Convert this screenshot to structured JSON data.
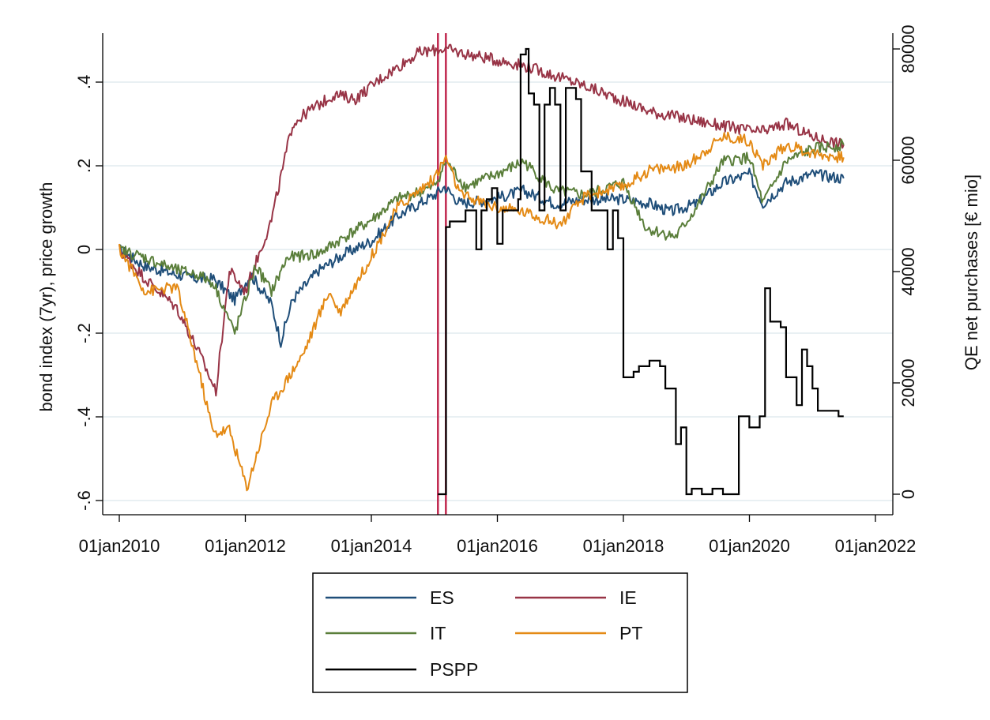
{
  "chart_data": {
    "type": "line",
    "title": "",
    "xlabel": "",
    "ylabel": "bond index (7yr), price growth",
    "y2label": "QE net purchases [€ mio]",
    "xlim": [
      "2010-01-01",
      "2022-01-01"
    ],
    "x_ticks": [
      "01jan2010",
      "01jan2012",
      "01jan2014",
      "01jan2016",
      "01jan2018",
      "01jan2020",
      "01jan2022"
    ],
    "ylim": [
      -0.6,
      0.5
    ],
    "y_ticks": [
      "-.6",
      "-.4",
      "-.2",
      "0",
      ".2",
      ".4"
    ],
    "y2lim": [
      0,
      80000
    ],
    "y2_ticks": [
      "0",
      "20000",
      "40000",
      "60000",
      "80000"
    ],
    "grid": true,
    "legend_position": "bottom",
    "vertical_markers": [
      "2015-01-22",
      "2015-03-09"
    ],
    "vertical_marker_color": "#c0284f",
    "series": [
      {
        "name": "ES",
        "color": "#1f4e79",
        "axis": "left",
        "points": [
          [
            "2010-01-01",
            0.0
          ],
          [
            "2010-06-01",
            -0.04
          ],
          [
            "2010-12-01",
            -0.06
          ],
          [
            "2011-04-01",
            -0.07
          ],
          [
            "2011-07-01",
            -0.07
          ],
          [
            "2011-11-01",
            -0.12
          ],
          [
            "2012-02-01",
            -0.06
          ],
          [
            "2012-06-01",
            -0.13
          ],
          [
            "2012-07-25",
            -0.22
          ],
          [
            "2012-10-01",
            -0.12
          ],
          [
            "2013-03-01",
            -0.05
          ],
          [
            "2013-08-01",
            -0.01
          ],
          [
            "2014-01-01",
            0.02
          ],
          [
            "2014-06-01",
            0.08
          ],
          [
            "2015-01-01",
            0.13
          ],
          [
            "2015-03-01",
            0.15
          ],
          [
            "2015-06-01",
            0.11
          ],
          [
            "2015-12-01",
            0.12
          ],
          [
            "2016-06-01",
            0.14
          ],
          [
            "2016-12-01",
            0.11
          ],
          [
            "2017-06-01",
            0.12
          ],
          [
            "2018-01-01",
            0.12
          ],
          [
            "2018-06-01",
            0.11
          ],
          [
            "2018-10-01",
            0.09
          ],
          [
            "2019-03-01",
            0.11
          ],
          [
            "2019-08-01",
            0.16
          ],
          [
            "2020-01-01",
            0.18
          ],
          [
            "2020-03-20",
            0.11
          ],
          [
            "2020-08-01",
            0.16
          ],
          [
            "2021-01-01",
            0.18
          ],
          [
            "2021-07-01",
            0.17
          ]
        ]
      },
      {
        "name": "IE",
        "color": "#983446",
        "axis": "left",
        "points": [
          [
            "2010-01-01",
            0.0
          ],
          [
            "2010-06-01",
            -0.07
          ],
          [
            "2010-12-01",
            -0.14
          ],
          [
            "2011-04-01",
            -0.24
          ],
          [
            "2011-07-15",
            -0.34
          ],
          [
            "2011-10-01",
            -0.05
          ],
          [
            "2012-01-01",
            -0.1
          ],
          [
            "2012-06-01",
            0.07
          ],
          [
            "2012-10-01",
            0.3
          ],
          [
            "2013-01-01",
            0.33
          ],
          [
            "2013-06-01",
            0.37
          ],
          [
            "2013-10-01",
            0.36
          ],
          [
            "2014-03-01",
            0.41
          ],
          [
            "2014-10-01",
            0.47
          ],
          [
            "2015-03-01",
            0.48
          ],
          [
            "2015-06-01",
            0.47
          ],
          [
            "2016-06-01",
            0.44
          ],
          [
            "2017-06-01",
            0.39
          ],
          [
            "2018-06-01",
            0.33
          ],
          [
            "2019-06-01",
            0.3
          ],
          [
            "2020-03-01",
            0.28
          ],
          [
            "2020-08-01",
            0.3
          ],
          [
            "2021-01-01",
            0.27
          ],
          [
            "2021-07-01",
            0.25
          ]
        ]
      },
      {
        "name": "IT",
        "color": "#5a7e3a",
        "axis": "left",
        "points": [
          [
            "2010-01-01",
            0.0
          ],
          [
            "2010-06-01",
            -0.02
          ],
          [
            "2010-12-01",
            -0.05
          ],
          [
            "2011-04-01",
            -0.06
          ],
          [
            "2011-07-01",
            -0.08
          ],
          [
            "2011-11-01",
            -0.2
          ],
          [
            "2012-03-01",
            -0.04
          ],
          [
            "2012-06-01",
            -0.1
          ],
          [
            "2012-09-01",
            -0.02
          ],
          [
            "2013-03-01",
            -0.01
          ],
          [
            "2013-08-01",
            0.03
          ],
          [
            "2014-01-01",
            0.07
          ],
          [
            "2014-06-01",
            0.12
          ],
          [
            "2015-01-01",
            0.15
          ],
          [
            "2015-03-10",
            0.21
          ],
          [
            "2015-07-01",
            0.15
          ],
          [
            "2016-01-01",
            0.18
          ],
          [
            "2016-06-01",
            0.21
          ],
          [
            "2016-12-01",
            0.14
          ],
          [
            "2017-06-01",
            0.13
          ],
          [
            "2018-01-01",
            0.16
          ],
          [
            "2018-05-15",
            0.05
          ],
          [
            "2018-11-01",
            0.03
          ],
          [
            "2019-03-01",
            0.1
          ],
          [
            "2019-08-01",
            0.21
          ],
          [
            "2020-01-01",
            0.22
          ],
          [
            "2020-03-20",
            0.11
          ],
          [
            "2020-08-01",
            0.21
          ],
          [
            "2021-01-01",
            0.24
          ],
          [
            "2021-07-01",
            0.25
          ]
        ]
      },
      {
        "name": "PT",
        "color": "#e48a15",
        "axis": "left",
        "points": [
          [
            "2010-01-01",
            0.0
          ],
          [
            "2010-06-01",
            -0.1
          ],
          [
            "2010-12-01",
            -0.09
          ],
          [
            "2011-04-01",
            -0.28
          ],
          [
            "2011-07-01",
            -0.44
          ],
          [
            "2011-10-01",
            -0.43
          ],
          [
            "2012-01-10",
            -0.57
          ],
          [
            "2012-06-01",
            -0.37
          ],
          [
            "2012-12-01",
            -0.25
          ],
          [
            "2013-05-01",
            -0.1
          ],
          [
            "2013-07-01",
            -0.15
          ],
          [
            "2013-12-01",
            -0.04
          ],
          [
            "2014-06-01",
            0.1
          ],
          [
            "2015-01-01",
            0.17
          ],
          [
            "2015-03-10",
            0.22
          ],
          [
            "2015-06-01",
            0.13
          ],
          [
            "2016-01-01",
            0.1
          ],
          [
            "2016-06-01",
            0.09
          ],
          [
            "2017-01-01",
            0.06
          ],
          [
            "2017-06-01",
            0.13
          ],
          [
            "2018-01-01",
            0.15
          ],
          [
            "2018-06-01",
            0.19
          ],
          [
            "2019-01-01",
            0.2
          ],
          [
            "2019-08-01",
            0.27
          ],
          [
            "2020-01-01",
            0.26
          ],
          [
            "2020-03-20",
            0.2
          ],
          [
            "2020-08-01",
            0.25
          ],
          [
            "2021-01-01",
            0.23
          ],
          [
            "2021-07-01",
            0.22
          ]
        ]
      },
      {
        "name": "PSPP",
        "color": "#000000",
        "axis": "right",
        "step": true,
        "points": [
          [
            "2015-01-22",
            0
          ],
          [
            "2015-03-09",
            0
          ],
          [
            "2015-03-10",
            48000
          ],
          [
            "2015-04-01",
            49000
          ],
          [
            "2015-07-01",
            51000
          ],
          [
            "2015-09-01",
            44000
          ],
          [
            "2015-10-01",
            51000
          ],
          [
            "2015-11-01",
            53000
          ],
          [
            "2015-12-01",
            55000
          ],
          [
            "2016-01-01",
            45000
          ],
          [
            "2016-02-01",
            51000
          ],
          [
            "2016-05-01",
            53000
          ],
          [
            "2016-05-15",
            79000
          ],
          [
            "2016-06-15",
            80000
          ],
          [
            "2016-07-01",
            72000
          ],
          [
            "2016-08-01",
            70000
          ],
          [
            "2016-09-01",
            51000
          ],
          [
            "2016-10-01",
            70000
          ],
          [
            "2016-11-01",
            73000
          ],
          [
            "2016-12-01",
            70000
          ],
          [
            "2017-01-01",
            51000
          ],
          [
            "2017-02-01",
            73000
          ],
          [
            "2017-04-01",
            71000
          ],
          [
            "2017-05-01",
            58000
          ],
          [
            "2017-07-01",
            51000
          ],
          [
            "2017-09-01",
            51000
          ],
          [
            "2017-10-01",
            44000
          ],
          [
            "2017-11-01",
            51000
          ],
          [
            "2017-12-01",
            46000
          ],
          [
            "2018-01-01",
            21000
          ],
          [
            "2018-03-01",
            22000
          ],
          [
            "2018-04-01",
            23000
          ],
          [
            "2018-06-01",
            24000
          ],
          [
            "2018-08-01",
            23000
          ],
          [
            "2018-09-01",
            19000
          ],
          [
            "2018-11-01",
            9000
          ],
          [
            "2018-12-01",
            12000
          ],
          [
            "2019-01-01",
            0
          ],
          [
            "2019-02-01",
            1000
          ],
          [
            "2019-04-01",
            0
          ],
          [
            "2019-06-01",
            1000
          ],
          [
            "2019-08-01",
            0
          ],
          [
            "2019-10-01",
            0
          ],
          [
            "2019-11-01",
            14000
          ],
          [
            "2020-01-01",
            12000
          ],
          [
            "2020-03-01",
            14000
          ],
          [
            "2020-04-01",
            37000
          ],
          [
            "2020-05-01",
            31000
          ],
          [
            "2020-07-01",
            30000
          ],
          [
            "2020-08-01",
            21000
          ],
          [
            "2020-09-01",
            21000
          ],
          [
            "2020-10-01",
            16000
          ],
          [
            "2020-11-01",
            26000
          ],
          [
            "2020-12-01",
            23000
          ],
          [
            "2021-01-01",
            19000
          ],
          [
            "2021-02-01",
            15000
          ],
          [
            "2021-04-01",
            15000
          ],
          [
            "2021-06-01",
            14000
          ],
          [
            "2021-07-01",
            14000
          ]
        ]
      }
    ]
  }
}
